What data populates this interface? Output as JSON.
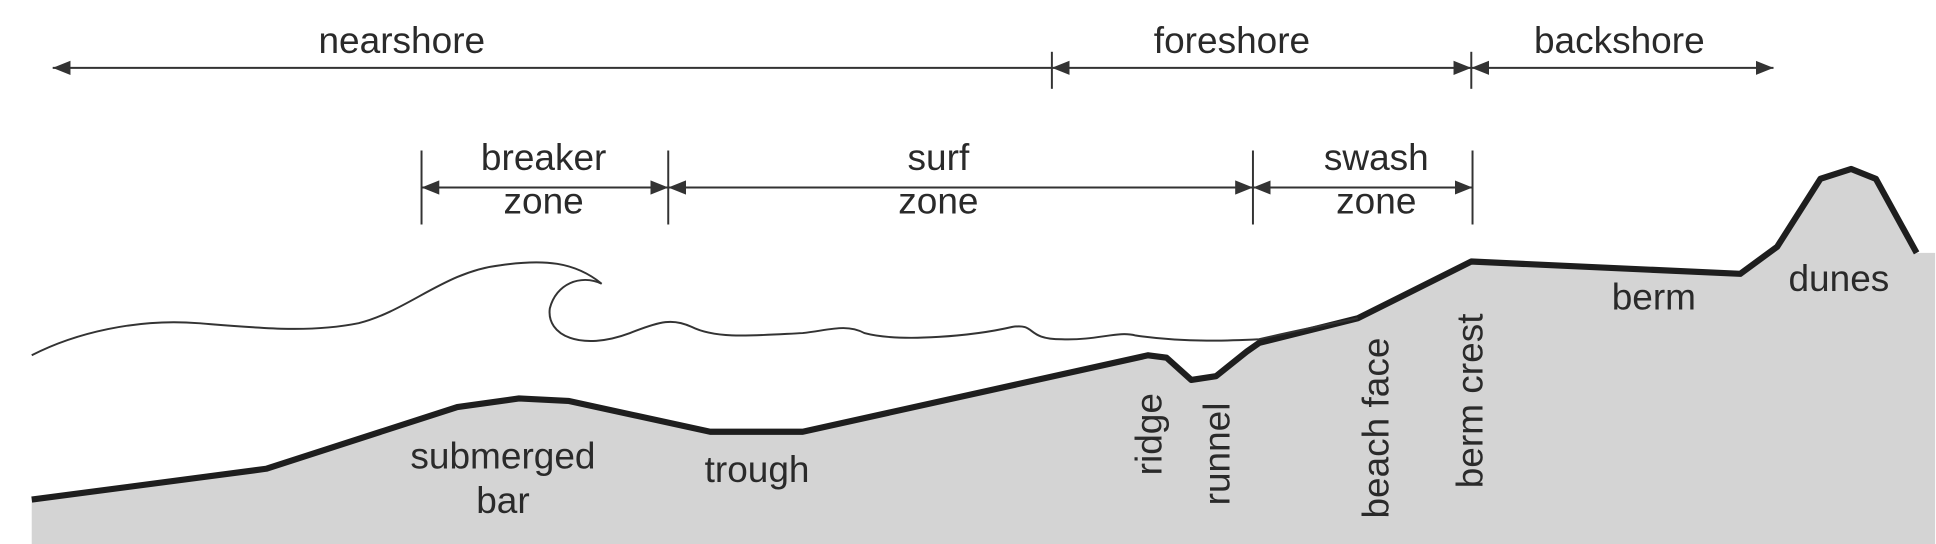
{
  "zones": [
    {
      "label": "nearshore"
    },
    {
      "label": "foreshore"
    },
    {
      "label": "backshore"
    }
  ],
  "subzones": [
    {
      "lines": [
        "breaker",
        "zone"
      ]
    },
    {
      "lines": [
        "surf",
        "zone"
      ]
    },
    {
      "lines": [
        "swash",
        "zone"
      ]
    }
  ],
  "features": [
    {
      "lines": [
        "submerged",
        "bar"
      ]
    },
    {
      "lines": [
        "trough"
      ]
    },
    {
      "lines": [
        "ridge"
      ]
    },
    {
      "lines": [
        "runnel"
      ]
    },
    {
      "lines": [
        "beach face"
      ]
    },
    {
      "lines": [
        "berm crest"
      ]
    },
    {
      "lines": [
        "berm"
      ]
    },
    {
      "lines": [
        "dunes"
      ]
    }
  ]
}
